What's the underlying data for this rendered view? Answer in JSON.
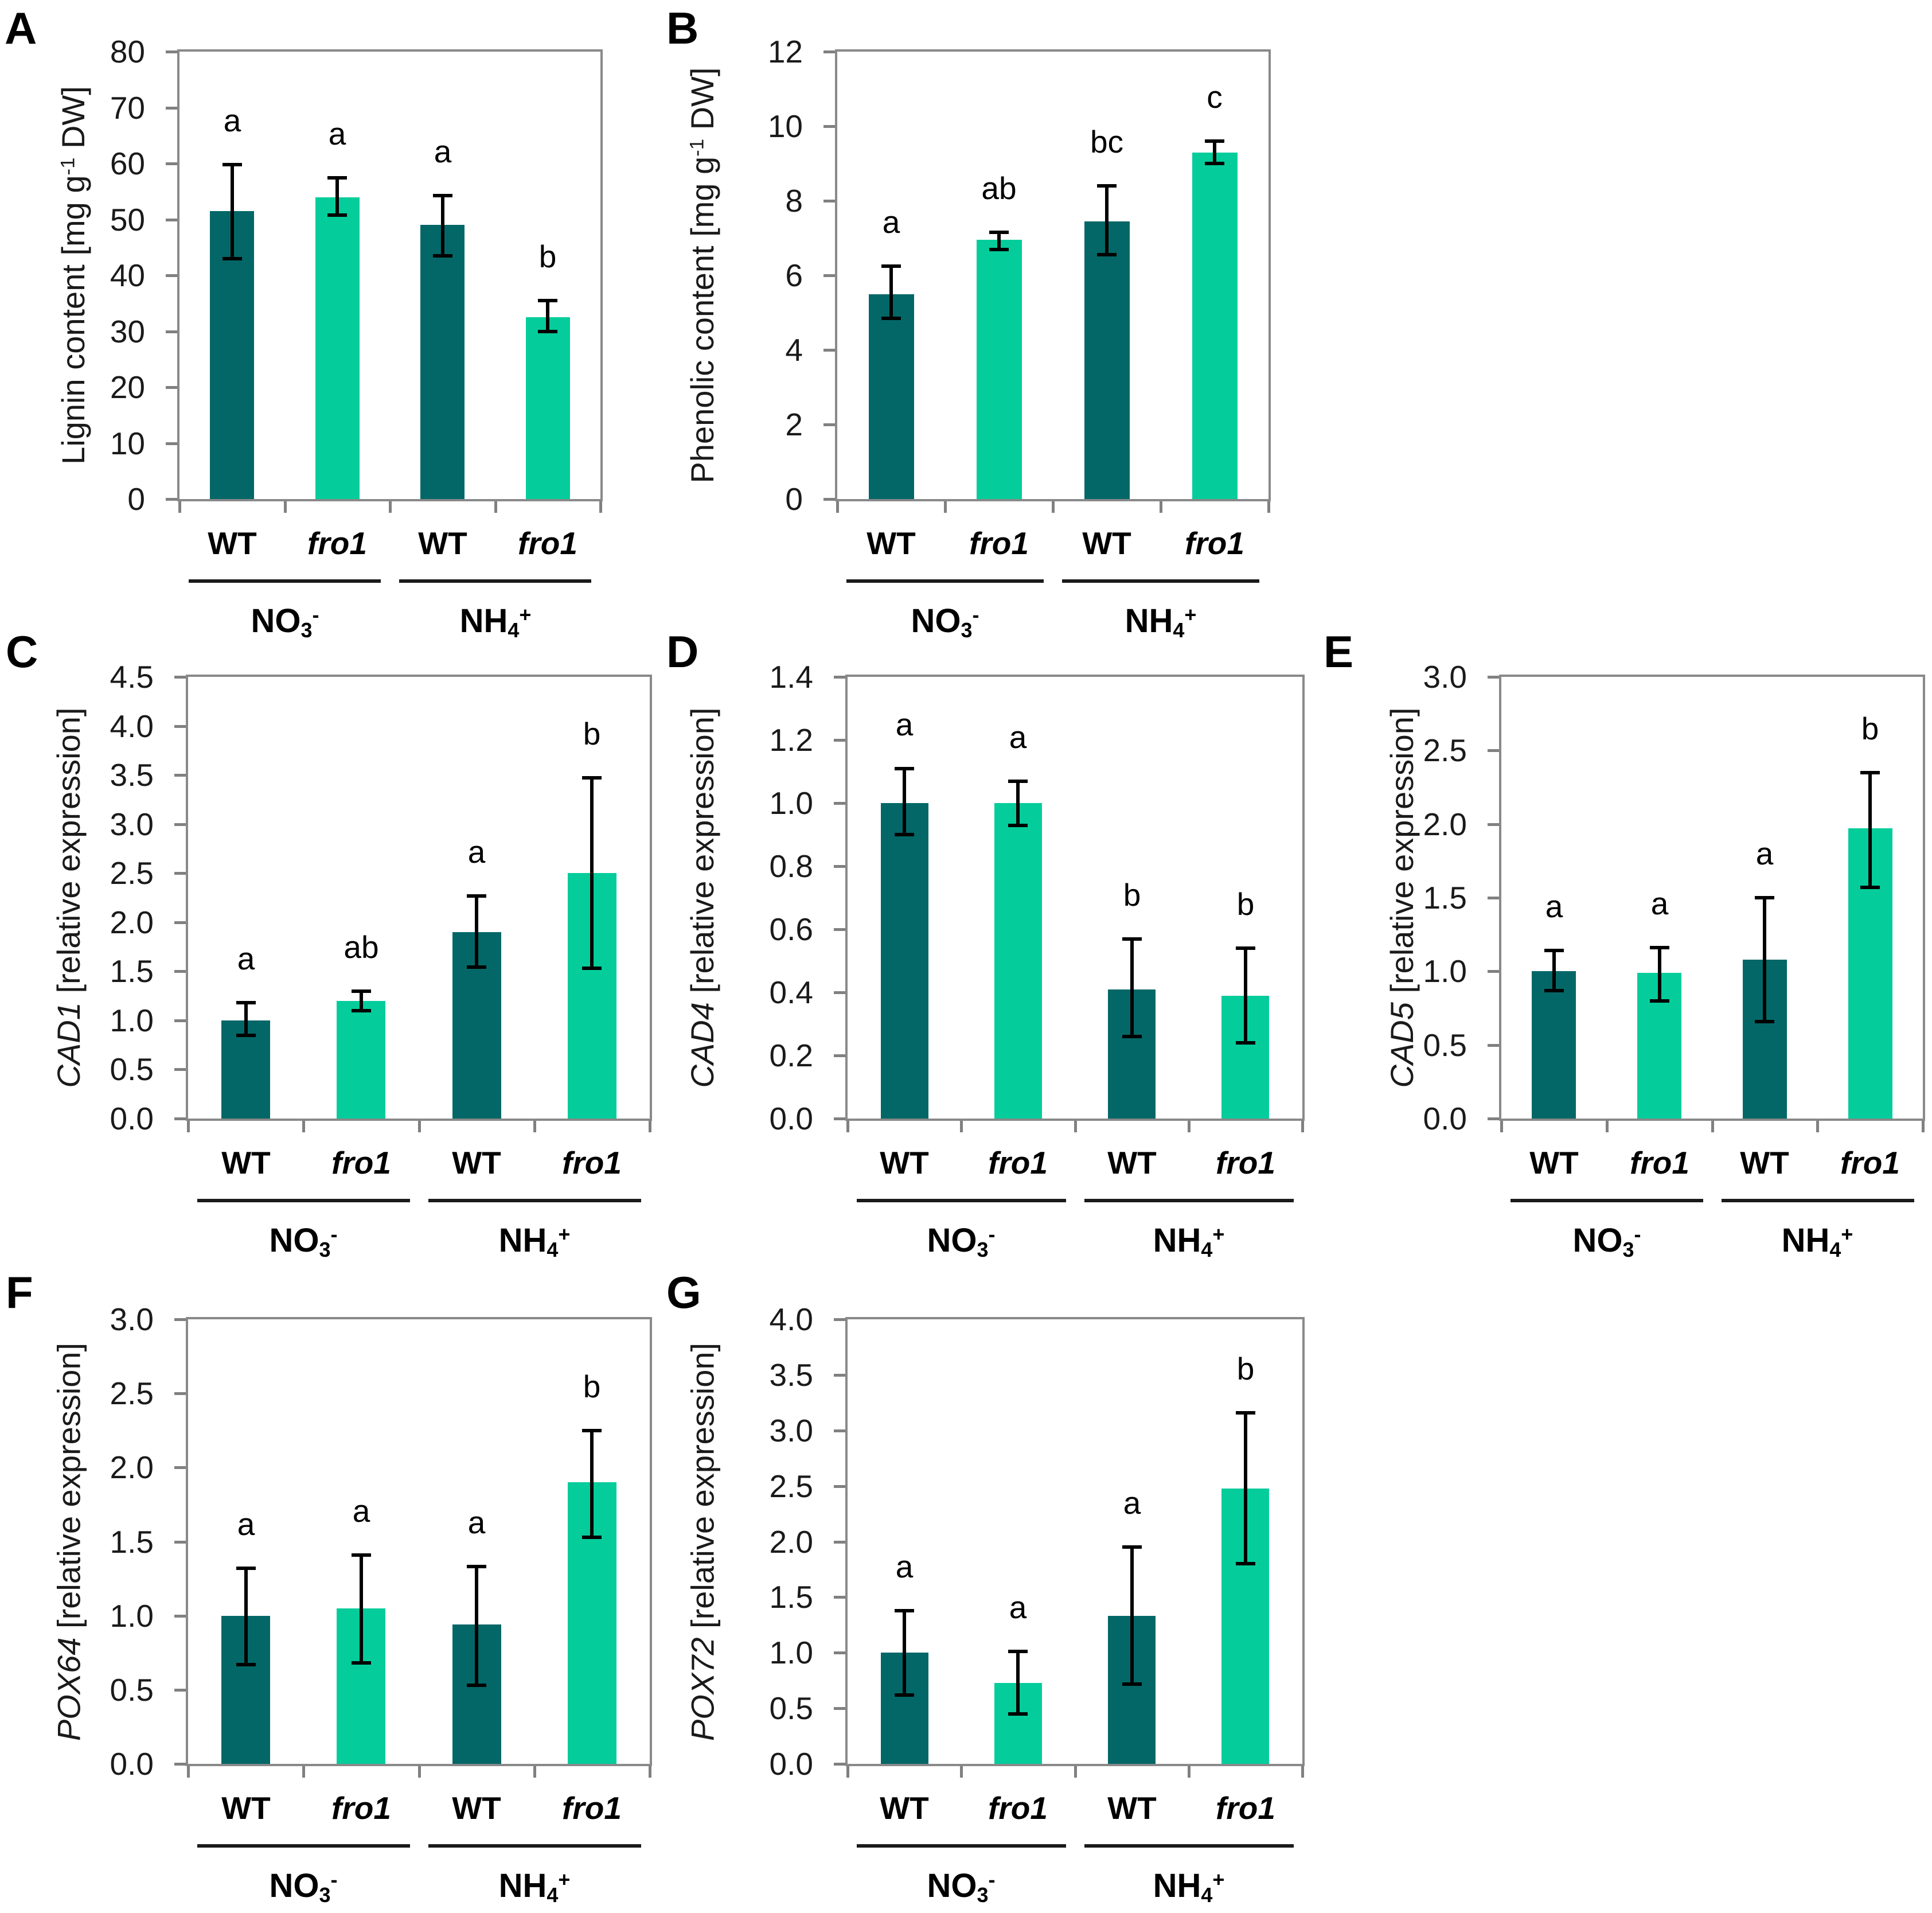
{
  "figure": {
    "background": "#ffffff",
    "bar_colors": {
      "wt": "#046767",
      "fro1": "#04CD9B"
    },
    "axis": {
      "frame_color": "#898989",
      "tick_color": "#808080",
      "text_color": "#1a1a1a",
      "error_color": "#000000"
    },
    "x_axis": {
      "categories": [
        {
          "label": "WT",
          "italic": false,
          "color_key": "wt"
        },
        {
          "label": "fro1",
          "italic": true,
          "color_key": "fro1"
        },
        {
          "label": "WT",
          "italic": false,
          "color_key": "wt"
        },
        {
          "label": "fro1",
          "italic": true,
          "color_key": "fro1"
        }
      ],
      "groups": [
        {
          "base": "NO",
          "sub": "3",
          "sup": "-"
        },
        {
          "base": "NH",
          "sub": "4",
          "sup": "+"
        }
      ]
    }
  },
  "chart_data": [
    {
      "panel_letter": "A",
      "type": "bar",
      "ylabel": {
        "italic": "",
        "text": "Lignin content [mg g",
        "sup": "-1",
        "end": " DW]"
      },
      "ylim": [
        0,
        80
      ],
      "ystep": 10,
      "ydecimals": 0,
      "grid": false,
      "legend": "none",
      "categories": [
        "WT NO3-",
        "fro1 NO3-",
        "WT NH4+",
        "fro1 NH4+"
      ],
      "values": [
        51.5,
        54.0,
        49.0,
        32.5
      ],
      "err_low": [
        43.0,
        50.8,
        43.5,
        30.0
      ],
      "err_high": [
        59.8,
        57.4,
        54.3,
        35.5
      ],
      "sig_letters": [
        "a",
        "a",
        "a",
        "b"
      ]
    },
    {
      "panel_letter": "B",
      "type": "bar",
      "ylabel": {
        "italic": "",
        "text": "Phenolic content [mg g",
        "sup": "-1",
        "end": " DW]"
      },
      "ylim": [
        0,
        12
      ],
      "ystep": 2,
      "ydecimals": 0,
      "grid": false,
      "legend": "none",
      "categories": [
        "WT NO3-",
        "fro1 NO3-",
        "WT NH4+",
        "fro1 NH4+"
      ],
      "values": [
        5.5,
        6.95,
        7.45,
        9.3
      ],
      "err_low": [
        4.85,
        6.7,
        6.55,
        9.0
      ],
      "err_high": [
        6.25,
        7.15,
        8.4,
        9.6
      ],
      "sig_letters": [
        "a",
        "ab",
        "bc",
        "c"
      ]
    },
    {
      "panel_letter": "C",
      "type": "bar",
      "ylabel": {
        "italic": "CAD1",
        "text": " [relative expression]",
        "sup": "",
        "end": ""
      },
      "ylim": [
        0,
        4.5
      ],
      "ystep": 0.5,
      "ydecimals": 1,
      "grid": false,
      "legend": "none",
      "categories": [
        "WT NO3-",
        "fro1 NO3-",
        "WT NH4+",
        "fro1 NH4+"
      ],
      "values": [
        1.0,
        1.2,
        1.9,
        2.5
      ],
      "err_low": [
        0.85,
        1.1,
        1.54,
        1.53
      ],
      "err_high": [
        1.18,
        1.3,
        2.27,
        3.47
      ],
      "sig_letters": [
        "a",
        "ab",
        "a",
        "b"
      ]
    },
    {
      "panel_letter": "D",
      "type": "bar",
      "ylabel": {
        "italic": "CAD4",
        "text": " [relative expression]",
        "sup": "",
        "end": ""
      },
      "ylim": [
        0,
        1.4
      ],
      "ystep": 0.2,
      "ydecimals": 1,
      "grid": false,
      "legend": "none",
      "categories": [
        "WT NO3-",
        "fro1 NO3-",
        "WT NH4+",
        "fro1 NH4+"
      ],
      "values": [
        1.0,
        1.0,
        0.41,
        0.39
      ],
      "err_low": [
        0.9,
        0.93,
        0.26,
        0.24
      ],
      "err_high": [
        1.11,
        1.07,
        0.57,
        0.54
      ],
      "sig_letters": [
        "a",
        "a",
        "b",
        "b"
      ]
    },
    {
      "panel_letter": "E",
      "type": "bar",
      "ylabel": {
        "italic": "CAD5",
        "text": " [relative expression]",
        "sup": "",
        "end": ""
      },
      "ylim": [
        0,
        3.0
      ],
      "ystep": 0.5,
      "ydecimals": 1,
      "grid": false,
      "legend": "none",
      "categories": [
        "WT NO3-",
        "fro1 NO3-",
        "WT NH4+",
        "fro1 NH4+"
      ],
      "values": [
        1.0,
        0.99,
        1.08,
        1.97
      ],
      "err_low": [
        0.87,
        0.8,
        0.66,
        1.57
      ],
      "err_high": [
        1.14,
        1.16,
        1.5,
        2.35
      ],
      "sig_letters": [
        "a",
        "a",
        "a",
        "b"
      ]
    },
    {
      "panel_letter": "F",
      "type": "bar",
      "ylabel": {
        "italic": "POX64",
        "text": " [relative expression]",
        "sup": "",
        "end": ""
      },
      "ylim": [
        0,
        3.0
      ],
      "ystep": 0.5,
      "ydecimals": 1,
      "grid": false,
      "legend": "none",
      "categories": [
        "WT NO3-",
        "fro1 NO3-",
        "WT NH4+",
        "fro1 NH4+"
      ],
      "values": [
        1.0,
        1.05,
        0.94,
        1.9
      ],
      "err_low": [
        0.67,
        0.68,
        0.53,
        1.53
      ],
      "err_high": [
        1.32,
        1.41,
        1.33,
        2.25
      ],
      "sig_letters": [
        "a",
        "a",
        "a",
        "b"
      ]
    },
    {
      "panel_letter": "G",
      "type": "bar",
      "ylabel": {
        "italic": "POX72",
        "text": " [relative expression]",
        "sup": "",
        "end": ""
      },
      "ylim": [
        0,
        4.0
      ],
      "ystep": 0.5,
      "ydecimals": 1,
      "grid": false,
      "legend": "none",
      "categories": [
        "WT NO3-",
        "fro1 NO3-",
        "WT NH4+",
        "fro1 NH4+"
      ],
      "values": [
        1.0,
        0.73,
        1.33,
        2.48
      ],
      "err_low": [
        0.62,
        0.45,
        0.72,
        1.8
      ],
      "err_high": [
        1.38,
        1.01,
        1.95,
        3.16
      ],
      "sig_letters": [
        "a",
        "a",
        "a",
        "b"
      ]
    }
  ]
}
